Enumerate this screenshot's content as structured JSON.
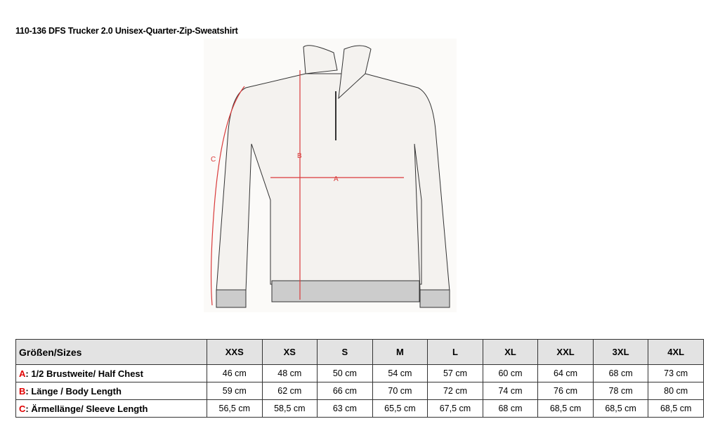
{
  "title": "110-136 DFS  Trucker 2.0 Unisex-Quarter-Zip-Sweatshirt",
  "diagram": {
    "labels": {
      "a": "A",
      "b": "B",
      "c": "C"
    },
    "measure_color": "#d93a3a"
  },
  "table": {
    "header": "Größen/Sizes",
    "sizes": [
      "XXS",
      "XS",
      "S",
      "M",
      "L",
      "XL",
      "XXL",
      "3XL",
      "4XL"
    ],
    "rows": [
      {
        "letter": "A",
        "label": ": 1/2 Brustweite/ Half Chest",
        "values": [
          "46 cm",
          "48 cm",
          "50 cm",
          "54 cm",
          "57 cm",
          "60 cm",
          "64 cm",
          "68 cm",
          "73 cm"
        ]
      },
      {
        "letter": "B",
        "label": ": Länge / Body Length",
        "values": [
          "59 cm",
          "62 cm",
          "66 cm",
          "70 cm",
          "72 cm",
          "74 cm",
          "76 cm",
          "78 cm",
          "80 cm"
        ]
      },
      {
        "letter": "C",
        "label": ": Ärmellänge/ Sleeve Length",
        "values": [
          "56,5 cm",
          "58,5 cm",
          "63 cm",
          "65,5 cm",
          "67,5 cm",
          "68 cm",
          "68,5 cm",
          "68,5 cm",
          "68,5 cm"
        ]
      }
    ]
  }
}
